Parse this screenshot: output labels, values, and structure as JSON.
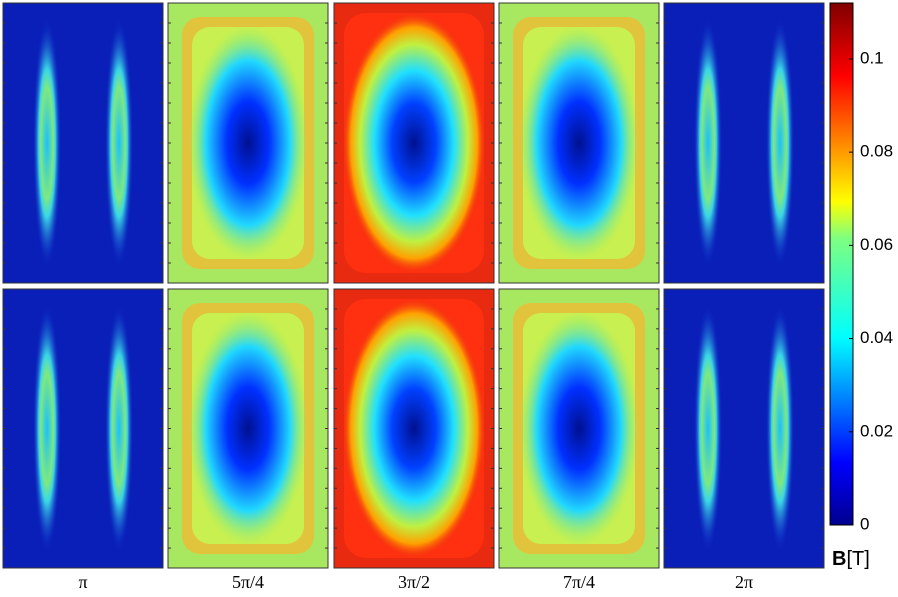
{
  "figure": {
    "columns": [
      "π",
      "5π/4",
      "3π/2",
      "7π/4",
      "2π"
    ],
    "colorbar": {
      "label": "B",
      "unit": "[T]",
      "lim": [
        0,
        0.112
      ],
      "ticks": [
        0,
        0.02,
        0.04,
        0.06,
        0.08,
        0.1
      ]
    }
  }
}
